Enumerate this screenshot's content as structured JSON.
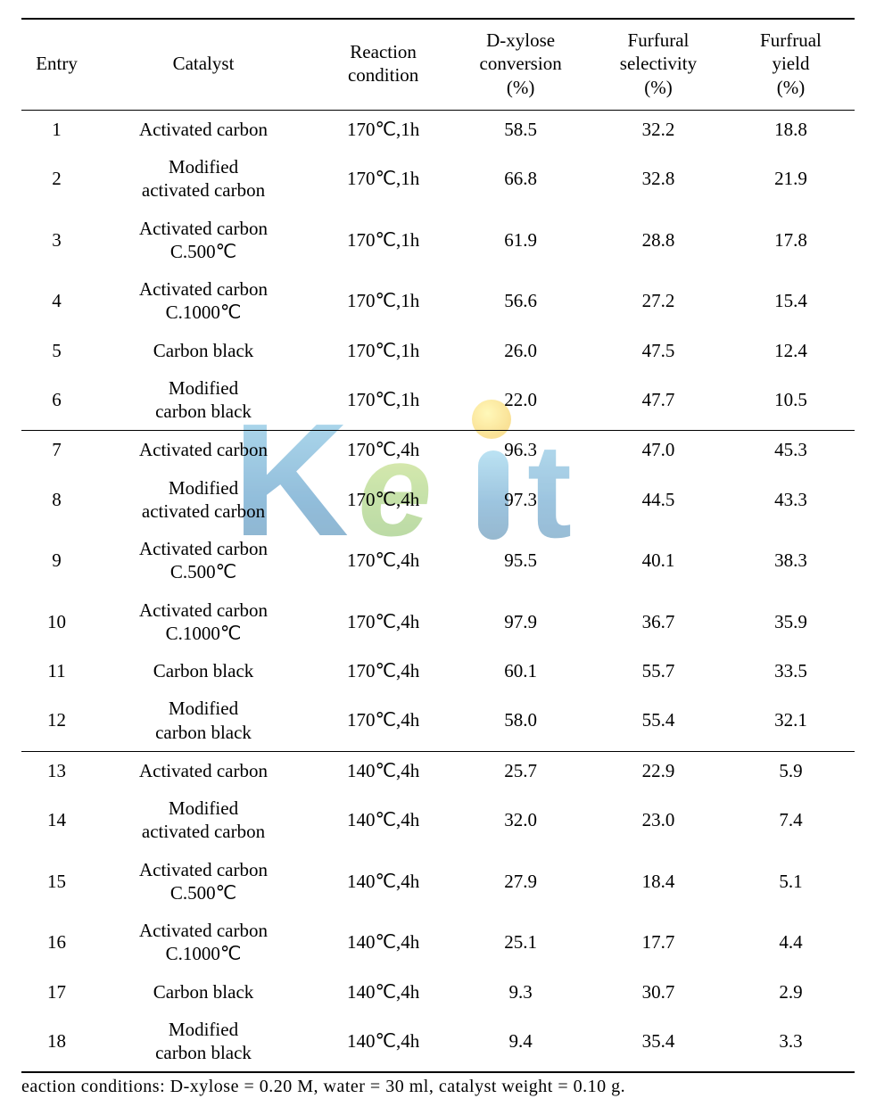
{
  "table": {
    "columns": [
      {
        "key": "entry",
        "label": "Entry",
        "class": "col-entry"
      },
      {
        "key": "catalyst",
        "label": "Catalyst",
        "class": "col-catalyst"
      },
      {
        "key": "condition",
        "label": "Reaction\ncondition",
        "class": "col-cond"
      },
      {
        "key": "conversion",
        "label": "D-xylose\nconversion\n(%)",
        "class": "col-conv"
      },
      {
        "key": "selectivity",
        "label": "Furfural\nselectivity\n(%)",
        "class": "col-sel"
      },
      {
        "key": "yield",
        "label": "Furfrual\nyield\n(%)",
        "class": "col-yield"
      }
    ],
    "sections": [
      {
        "rows": [
          {
            "entry": "1",
            "catalyst": "Activated carbon",
            "condition": "170℃,1h",
            "conversion": "58.5",
            "selectivity": "32.2",
            "yield": "18.8"
          },
          {
            "entry": "2",
            "catalyst": "Modified\nactivated carbon",
            "condition": "170℃,1h",
            "conversion": "66.8",
            "selectivity": "32.8",
            "yield": "21.9"
          },
          {
            "entry": "3",
            "catalyst": "Activated carbon\nC.500℃",
            "condition": "170℃,1h",
            "conversion": "61.9",
            "selectivity": "28.8",
            "yield": "17.8"
          },
          {
            "entry": "4",
            "catalyst": "Activated carbon\nC.1000℃",
            "condition": "170℃,1h",
            "conversion": "56.6",
            "selectivity": "27.2",
            "yield": "15.4"
          },
          {
            "entry": "5",
            "catalyst": "Carbon black",
            "condition": "170℃,1h",
            "conversion": "26.0",
            "selectivity": "47.5",
            "yield": "12.4"
          },
          {
            "entry": "6",
            "catalyst": "Modified\ncarbon black",
            "condition": "170℃,1h",
            "conversion": "22.0",
            "selectivity": "47.7",
            "yield": "10.5"
          }
        ]
      },
      {
        "rows": [
          {
            "entry": "7",
            "catalyst": "Activated carbon",
            "condition": "170℃,4h",
            "conversion": "96.3",
            "selectivity": "47.0",
            "yield": "45.3"
          },
          {
            "entry": "8",
            "catalyst": "Modified\nactivated carbon",
            "condition": "170℃,4h",
            "conversion": "97.3",
            "selectivity": "44.5",
            "yield": "43.3"
          },
          {
            "entry": "9",
            "catalyst": "Activated carbon\nC.500℃",
            "condition": "170℃,4h",
            "conversion": "95.5",
            "selectivity": "40.1",
            "yield": "38.3"
          },
          {
            "entry": "10",
            "catalyst": "Activated carbon\nC.1000℃",
            "condition": "170℃,4h",
            "conversion": "97.9",
            "selectivity": "36.7",
            "yield": "35.9"
          },
          {
            "entry": "11",
            "catalyst": "Carbon black",
            "condition": "170℃,4h",
            "conversion": "60.1",
            "selectivity": "55.7",
            "yield": "33.5"
          },
          {
            "entry": "12",
            "catalyst": "Modified\ncarbon black",
            "condition": "170℃,4h",
            "conversion": "58.0",
            "selectivity": "55.4",
            "yield": "32.1"
          }
        ]
      },
      {
        "rows": [
          {
            "entry": "13",
            "catalyst": "Activated carbon",
            "condition": "140℃,4h",
            "conversion": "25.7",
            "selectivity": "22.9",
            "yield": "5.9"
          },
          {
            "entry": "14",
            "catalyst": "Modified\nactivated carbon",
            "condition": "140℃,4h",
            "conversion": "32.0",
            "selectivity": "23.0",
            "yield": "7.4"
          },
          {
            "entry": "15",
            "catalyst": "Activated carbon\nC.500℃",
            "condition": "140℃,4h",
            "conversion": "27.9",
            "selectivity": "18.4",
            "yield": "5.1"
          },
          {
            "entry": "16",
            "catalyst": "Activated carbon\nC.1000℃",
            "condition": "140℃,4h",
            "conversion": "25.1",
            "selectivity": "17.7",
            "yield": "4.4"
          },
          {
            "entry": "17",
            "catalyst": "Carbon black",
            "condition": "140℃,4h",
            "conversion": "9.3",
            "selectivity": "30.7",
            "yield": "2.9"
          },
          {
            "entry": "18",
            "catalyst": "Modified\ncarbon black",
            "condition": "140℃,4h",
            "conversion": "9.4",
            "selectivity": "35.4",
            "yield": "3.3"
          }
        ]
      }
    ],
    "header_fontsize": 21,
    "body_fontsize": 21,
    "border_color": "#000000",
    "background_color": "#ffffff"
  },
  "footnote": "eaction conditions: D-xylose = 0.20 M, water = 30 ml, catalyst weight = 0.10 g.",
  "watermark": {
    "text": "Keit",
    "colors": {
      "k_top": "#4aa8d8",
      "k_mid": "#2a7fb8",
      "e_top": "#9ed36a",
      "e_mid": "#5fb548",
      "dot_i": "#f6d33c",
      "stem": "#2a7fb8",
      "t": "#2a7fb8"
    },
    "opacity": 0.85,
    "font_family": "Arial Rounded MT Bold, Arial, sans-serif",
    "font_weight": "900"
  }
}
